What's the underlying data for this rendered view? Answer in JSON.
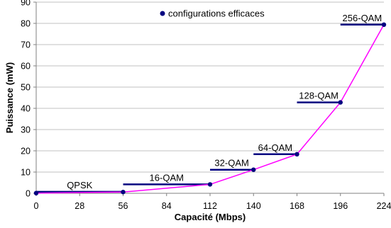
{
  "chart_data": {
    "type": "line",
    "title": "",
    "xlabel": "Capacité (Mbps)",
    "ylabel": "Puissance (mW)",
    "xlim": [
      0,
      224
    ],
    "ylim": [
      0,
      90
    ],
    "xticks": [
      0,
      28,
      56,
      84,
      112,
      140,
      168,
      196,
      224
    ],
    "yticks": [
      0,
      10,
      20,
      30,
      40,
      50,
      60,
      70,
      80,
      90
    ],
    "grid": "horizontal",
    "legend": {
      "position": "top-center",
      "entries": [
        "configurations efficaces"
      ]
    },
    "series": [
      {
        "name": "configurations efficaces",
        "x": [
          0,
          56,
          112,
          140,
          168,
          196,
          224
        ],
        "y": [
          0.1,
          0.6,
          4.2,
          11.1,
          18.4,
          42.8,
          79.4
        ]
      }
    ],
    "segments": [
      {
        "label": "QPSK",
        "x_start": 0,
        "x_end": 56,
        "y": 0.7
      },
      {
        "label": "16-QAM",
        "x_start": 56,
        "x_end": 112,
        "y": 4.2
      },
      {
        "label": "32-QAM",
        "x_start": 112,
        "x_end": 140,
        "y": 11.1
      },
      {
        "label": "64-QAM",
        "x_start": 140,
        "x_end": 168,
        "y": 18.4
      },
      {
        "label": "128-QAM",
        "x_start": 168,
        "x_end": 196,
        "y": 42.8
      },
      {
        "label": "256-QAM",
        "x_start": 196,
        "x_end": 224,
        "y": 79.4
      }
    ],
    "colors": {
      "line": "#ff00ff",
      "marker": "#000080",
      "segment": "#000080",
      "grid": "#c0c0c0",
      "axis": "#808080"
    }
  }
}
